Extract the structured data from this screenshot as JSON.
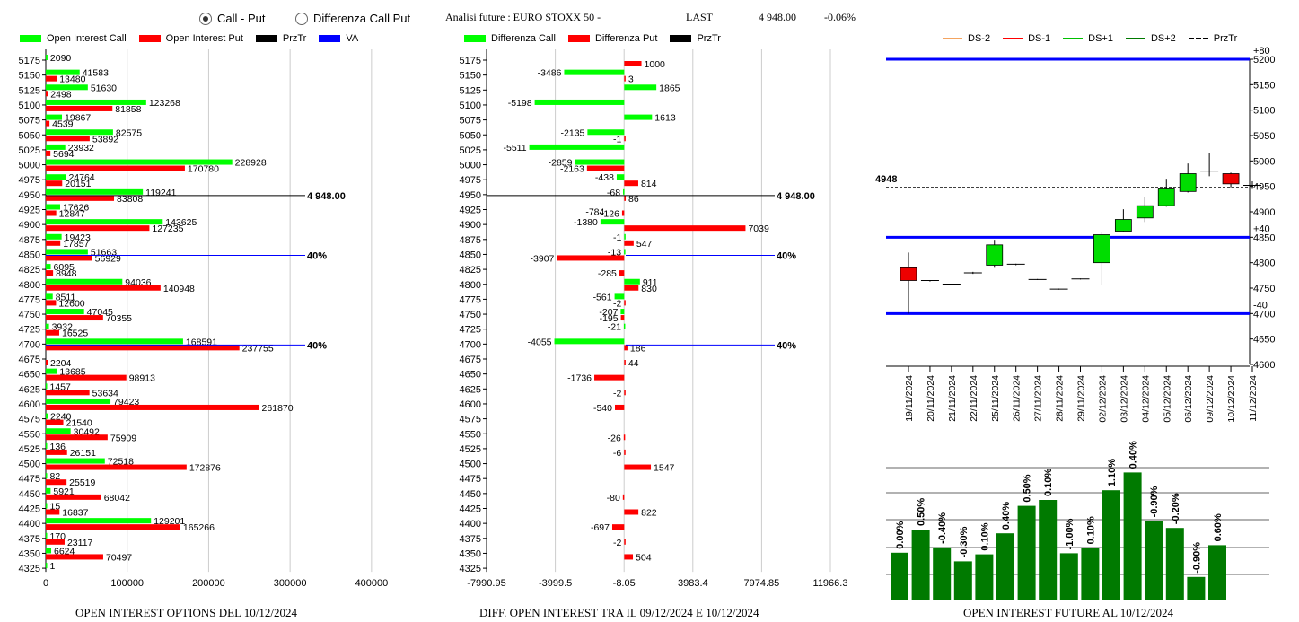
{
  "toolbar": {
    "call_put_label": "Call - Put",
    "diff_label": "Differenza Call Put",
    "call_put_selected": true
  },
  "header": {
    "title": "Analisi future : EURO STOXX 50 -",
    "last_label": "LAST",
    "last_value": "4 948.00",
    "change": "-0.06%"
  },
  "colors": {
    "call": "#00ff00",
    "put": "#ff0000",
    "prztr": "#000000",
    "va": "#0000ff",
    "bar_green": "#007a00"
  },
  "legend1": {
    "call": "Open Interest Call",
    "put": "Open Interest Put",
    "prztr": "PrzTr",
    "va": "VA"
  },
  "legend2": {
    "call": "Differenza Call",
    "put": "Differenza Put",
    "prztr": "PrzTr"
  },
  "legend3": {
    "ds_m2": "DS-2",
    "ds_m1": "DS-1",
    "ds_p1": "DS+1",
    "ds_p2": "DS+2",
    "prztr": "PrzTr"
  },
  "footers": {
    "left": "OPEN INTEREST OPTIONS DEL 10/12/2024",
    "mid": "DIFF. OPEN INTEREST TRA IL 09/12/2024 E 10/12/2024",
    "right": "OPEN INTEREST FUTURE AL 10/12/2024"
  },
  "chart_data": [
    {
      "type": "bar",
      "orientation": "horizontal",
      "strikes": [
        5175,
        5150,
        5125,
        5100,
        5075,
        5050,
        5025,
        5000,
        4975,
        4950,
        4925,
        4900,
        4875,
        4850,
        4825,
        4800,
        4775,
        4750,
        4725,
        4700,
        4675,
        4650,
        4625,
        4600,
        4575,
        4550,
        4525,
        4500,
        4475,
        4450,
        4425,
        4400,
        4375,
        4350,
        4325
      ],
      "series": [
        {
          "name": "Open Interest Call",
          "values": [
            2090,
            41583,
            51630,
            123268,
            19867,
            82575,
            23932,
            228928,
            24764,
            119241,
            17626,
            143625,
            19423,
            51663,
            6095,
            94036,
            8511,
            47045,
            3932,
            168591,
            null,
            13685,
            1457,
            79423,
            2240,
            30492,
            136,
            72518,
            82,
            5921,
            15,
            129201,
            170,
            6624,
            1
          ]
        },
        {
          "name": "Open Interest Put",
          "values": [
            null,
            13480,
            2498,
            81858,
            4539,
            53892,
            5694,
            170780,
            20151,
            83808,
            12847,
            127235,
            17857,
            56929,
            8948,
            140948,
            12600,
            70355,
            16525,
            237755,
            2204,
            98913,
            53634,
            261870,
            21540,
            75909,
            26151,
            172876,
            25519,
            68042,
            16837,
            165266,
            23117,
            70497,
            null
          ]
        }
      ],
      "xticks": [
        "0",
        "100000",
        "200000",
        "300000",
        "400000"
      ],
      "xlim": [
        0,
        420000
      ],
      "prztr": {
        "strike": 4950,
        "label": "4 948.00"
      },
      "va_lines": [
        {
          "strike": 4850,
          "label": "40%"
        },
        {
          "strike": 4700,
          "label": "40%"
        }
      ]
    },
    {
      "type": "bar",
      "orientation": "horizontal",
      "strikes": [
        5175,
        5150,
        5125,
        5100,
        5075,
        5050,
        5025,
        5000,
        4975,
        4950,
        4925,
        4900,
        4875,
        4850,
        4825,
        4800,
        4775,
        4750,
        4725,
        4700,
        4675,
        4650,
        4625,
        4600,
        4575,
        4550,
        4525,
        4500,
        4475,
        4450,
        4425,
        4400,
        4375,
        4350,
        4325
      ],
      "series": [
        {
          "name": "Differenza Call",
          "values": [
            null,
            -3486,
            1865,
            -5198,
            1613,
            -2135,
            -5511,
            -2859,
            -438,
            -68,
            null,
            -1380,
            -1,
            -13,
            null,
            911,
            -561,
            -207,
            -21,
            -4055,
            null,
            null,
            null,
            null,
            null,
            null,
            null,
            null,
            null,
            null,
            null,
            null,
            null,
            null,
            null
          ]
        },
        {
          "name": "Differenza Put",
          "values": [
            1000,
            3,
            null,
            null,
            null,
            -1,
            null,
            -2163,
            814,
            86,
            -126,
            7039,
            547,
            -3907,
            -285,
            830,
            -2,
            -195,
            null,
            186,
            44,
            -1736,
            -2,
            -540,
            null,
            -26,
            -6,
            1547,
            null,
            -80,
            822,
            -697,
            -2,
            504,
            null
          ]
        }
      ],
      "extra_labels": [
        {
          "strike": 4925,
          "text": "-784"
        }
      ],
      "xticks": [
        "-7990.95",
        "-3999.5",
        "-8.05",
        "3983.4",
        "7974.85",
        "11966.3"
      ],
      "xlim": [
        -7990.95,
        11966.3
      ],
      "prztr": {
        "strike": 4950,
        "label": "4 948.00"
      },
      "va_lines": [
        {
          "strike": 4850,
          "label": "40%"
        },
        {
          "strike": 4700,
          "label": "40%"
        }
      ]
    },
    {
      "type": "candlestick",
      "dates": [
        "19/11/2024",
        "20/11/2024",
        "21/11/2024",
        "22/11/2024",
        "25/11/2024",
        "26/11/2024",
        "27/11/2024",
        "28/11/2024",
        "29/11/2024",
        "02/12/2024",
        "03/12/2024",
        "04/12/2024",
        "05/12/2024",
        "06/12/2024",
        "09/12/2024",
        "10/12/2024",
        "11/12/2024"
      ],
      "candles": [
        {
          "o": 4790,
          "h": 4820,
          "l": 4700,
          "c": 4765
        },
        {
          "o": 4763,
          "h": 4765,
          "l": 4763,
          "c": 4765
        },
        {
          "o": 4757,
          "h": 4758,
          "l": 4756,
          "c": 4758
        },
        {
          "o": 4780,
          "h": 4782,
          "l": 4778,
          "c": 4780
        },
        {
          "o": 4795,
          "h": 4845,
          "l": 4790,
          "c": 4835
        },
        {
          "o": 4797,
          "h": 4798,
          "l": 4795,
          "c": 4797
        },
        {
          "o": 4767,
          "h": 4768,
          "l": 4766,
          "c": 4767
        },
        {
          "o": 4748,
          "h": 4749,
          "l": 4747,
          "c": 4748
        },
        {
          "o": 4768,
          "h": 4769,
          "l": 4767,
          "c": 4768
        },
        {
          "o": 4800,
          "h": 4860,
          "l": 4757,
          "c": 4855
        },
        {
          "o": 4862,
          "h": 4905,
          "l": 4860,
          "c": 4885
        },
        {
          "o": 4888,
          "h": 4930,
          "l": 4880,
          "c": 4912
        },
        {
          "o": 4912,
          "h": 4965,
          "l": 4910,
          "c": 4945
        },
        {
          "o": 4940,
          "h": 4995,
          "l": 4938,
          "c": 4975
        },
        {
          "o": 4980,
          "h": 5015,
          "l": 4970,
          "c": 4980
        },
        {
          "o": 4975,
          "h": 4977,
          "l": 4948,
          "c": 4955
        },
        {
          "o": 4952,
          "h": 4960,
          "l": 4945,
          "c": 4952
        }
      ],
      "yticks": [
        5200,
        5150,
        5100,
        5050,
        5000,
        4950,
        4900,
        4850,
        4800,
        4750,
        4700,
        4650,
        4600
      ],
      "ylim": [
        4600,
        5200
      ],
      "price_label": "4948",
      "prztr": 4948,
      "levels": [
        {
          "value": 5200,
          "label": "+80"
        },
        {
          "value": 4850,
          "label": "+40"
        },
        {
          "value": 4700,
          "label": "-40"
        }
      ]
    },
    {
      "type": "bar",
      "values": [
        0.0,
        0.5,
        -0.4,
        -0.3,
        0.1,
        0.4,
        0.5,
        0.1,
        -1.0,
        0.1,
        1.1,
        0.4,
        -0.9,
        -0.2,
        -0.9,
        0.6
      ],
      "labels": [
        "0.00%",
        "0.50%",
        "-0.40%",
        "-0.30%",
        "0.10%",
        "0.40%",
        "0.50%",
        "0.10%",
        "-1.00%",
        "0.10%",
        "1.10%",
        "0.40%",
        "-0.90%",
        "-0.20%",
        "-0.90%",
        "0.60%"
      ],
      "heights": [
        8.7,
        13.0,
        9.7,
        7.1,
        8.4,
        12.3,
        17.4,
        18.5,
        8.6,
        9.6,
        20.3,
        23.6,
        14.6,
        13.3,
        4.2,
        10.1
      ]
    }
  ]
}
